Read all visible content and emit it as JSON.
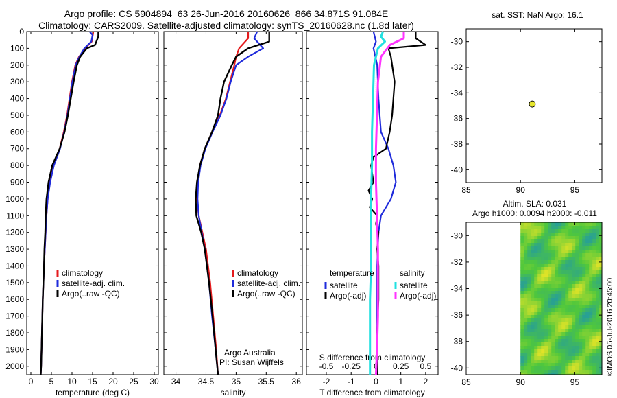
{
  "header": {
    "line1": "Argo profile: CS 5904894_63 26-Jun-2016 20160626_866 34.871S 91.084E",
    "line2": "Climatology: CARS2009. Satellite-adjusted climatology: synTS_20160628.nc (1.8d later)"
  },
  "colors": {
    "climatology": "#e41a1c",
    "satellite": "#1f2bdb",
    "argo": "#000000",
    "sal_satellite": "#22e0e0",
    "sal_argo": "#ff33ff",
    "float": "#e6e62e"
  },
  "chart_data": [
    {
      "id": "temperature",
      "type": "line",
      "xlabel": "temperature (deg C)",
      "ylabel": "",
      "xlim": [
        -1,
        31
      ],
      "ylim": [
        2050,
        0
      ],
      "xticks": [
        0,
        5,
        10,
        15,
        20,
        25,
        30
      ],
      "yticks": [
        0,
        100,
        200,
        300,
        400,
        500,
        600,
        700,
        800,
        900,
        1000,
        1100,
        1200,
        1300,
        1400,
        1500,
        1600,
        1700,
        1800,
        1900,
        2000
      ],
      "legend": [
        "climatology",
        "satellite-adj. clim.",
        "Argo(..raw -QC)"
      ],
      "series": [
        {
          "name": "climatology",
          "depth": [
            0,
            60,
            100,
            150,
            200,
            300,
            400,
            500,
            600,
            700,
            800,
            900,
            1000,
            1100,
            1200,
            1300,
            1400,
            1600,
            1800,
            2000,
            2050
          ],
          "values": [
            15.2,
            14.8,
            13.2,
            11.7,
            10.8,
            10.0,
            9.4,
            8.8,
            8.0,
            7.0,
            5.5,
            4.6,
            4.1,
            3.8,
            3.6,
            3.4,
            3.2,
            2.9,
            2.7,
            2.5,
            2.4
          ]
        },
        {
          "name": "satellite-adj. clim.",
          "depth": [
            0,
            20,
            60,
            100,
            150,
            200,
            300,
            400,
            500,
            600,
            700,
            800,
            900,
            1000,
            1100,
            1200,
            1300,
            1400,
            1600,
            1800,
            2000,
            2050
          ],
          "values": [
            14.3,
            15.0,
            14.7,
            13.0,
            11.8,
            10.9,
            10.1,
            9.5,
            8.9,
            8.1,
            7.1,
            5.6,
            4.7,
            4.1,
            3.8,
            3.6,
            3.4,
            3.2,
            2.9,
            2.7,
            2.5,
            2.4
          ]
        },
        {
          "name": "Argo(..raw -QC)",
          "depth": [
            0,
            30,
            80,
            100,
            150,
            200,
            300,
            400,
            500,
            600,
            700,
            800,
            900,
            1000,
            1100,
            1200,
            1300,
            1400,
            1600,
            1800,
            2000,
            2050
          ],
          "values": [
            16.4,
            16.4,
            15.6,
            13.6,
            12.0,
            11.2,
            10.4,
            9.7,
            9.0,
            8.2,
            7.0,
            5.2,
            4.3,
            3.8,
            3.6,
            3.5,
            3.3,
            3.2,
            2.9,
            2.7,
            2.5,
            2.4
          ]
        }
      ]
    },
    {
      "id": "salinity",
      "type": "line",
      "xlabel": "salinity",
      "ylabel": "",
      "xlim": [
        33.8,
        36.1
      ],
      "ylim": [
        2050,
        0
      ],
      "xticks": [
        34,
        34.5,
        35,
        35.5,
        36
      ],
      "legend": [
        "climatology",
        "satellite-adj. clim.",
        "Argo(..raw -QC)"
      ],
      "annotations": [
        "Argo Australia",
        "PI: Susan Wijffels"
      ],
      "series": [
        {
          "name": "climatology",
          "depth": [
            0,
            40,
            100,
            150,
            200,
            300,
            400,
            500,
            600,
            700,
            800,
            900,
            1000,
            1100,
            1200,
            1300,
            1500,
            1700,
            1900,
            2050
          ],
          "values": [
            35.2,
            35.2,
            35.05,
            35.0,
            34.97,
            34.9,
            34.83,
            34.73,
            34.6,
            34.48,
            34.4,
            34.36,
            34.35,
            34.38,
            34.44,
            34.5,
            34.57,
            34.62,
            34.67,
            34.7
          ]
        },
        {
          "name": "satellite-adj. clim.",
          "depth": [
            0,
            40,
            100,
            150,
            200,
            300,
            400,
            500,
            600,
            700,
            800,
            900,
            1000,
            1100,
            1200,
            1300,
            1500,
            1700,
            1900,
            2050
          ],
          "values": [
            35.35,
            35.3,
            35.45,
            35.2,
            35.0,
            34.91,
            34.84,
            34.74,
            34.61,
            34.49,
            34.41,
            34.37,
            34.36,
            34.38,
            34.43,
            34.48,
            34.55,
            34.6,
            34.66,
            34.7
          ]
        },
        {
          "name": "Argo(..raw -QC)",
          "depth": [
            0,
            60,
            100,
            150,
            200,
            300,
            400,
            500,
            600,
            700,
            800,
            900,
            1000,
            1100,
            1200,
            1300,
            1500,
            1700,
            1900,
            2050
          ],
          "values": [
            35.55,
            35.55,
            35.2,
            35.0,
            34.93,
            34.8,
            34.74,
            34.7,
            34.6,
            34.48,
            34.4,
            34.35,
            34.33,
            34.34,
            34.42,
            34.48,
            34.55,
            34.61,
            34.66,
            34.7
          ]
        }
      ]
    },
    {
      "id": "difference",
      "type": "line",
      "xlabel": "T difference from climatology",
      "secondary_xlabel": "S difference from climatology",
      "xlim": [
        -2.8,
        2.5
      ],
      "ylim": [
        2050,
        0
      ],
      "xticks": [
        -2,
        -1,
        0,
        1,
        2
      ],
      "secondary_xticks": [
        "-0.5",
        "-0.25",
        "0",
        "0.25",
        "0.5"
      ],
      "legend_groups": [
        "temperature",
        "salinity"
      ],
      "legend": [
        "satellite",
        "Argo(-adj)",
        "satellite",
        "Argo(-adj)"
      ],
      "series": [
        {
          "name": "temperature satellite",
          "depth": [
            0,
            30,
            60,
            100,
            200,
            400,
            600,
            700,
            800,
            900,
            1000,
            1100,
            1200,
            1400,
            1600,
            1800,
            2050
          ],
          "values": [
            -0.1,
            -0.05,
            0.0,
            -0.1,
            0.05,
            0.1,
            0.2,
            0.5,
            0.7,
            0.8,
            0.6,
            0.2,
            0.1,
            0.05,
            0.05,
            0.05,
            0.05
          ]
        },
        {
          "name": "temperature Argo(-adj)",
          "depth": [
            0,
            40,
            80,
            100,
            150,
            200,
            300,
            400,
            500,
            600,
            700,
            750,
            800,
            850,
            900,
            950,
            1000,
            1050,
            1100,
            1150,
            1200,
            1300,
            1400,
            1600,
            1800,
            2050
          ],
          "values": [
            1.6,
            1.6,
            2.0,
            0.5,
            0.6,
            0.65,
            0.75,
            0.7,
            0.65,
            0.55,
            0.4,
            -0.1,
            -0.2,
            -0.15,
            -0.1,
            -0.3,
            -0.15,
            -0.25,
            0.05,
            0.0,
            0.1,
            0.05,
            0.1,
            0.1,
            0.05,
            0.05
          ]
        },
        {
          "name": "salinity satellite",
          "depth": [
            0,
            30,
            60,
            100,
            200,
            400,
            600,
            800,
            1000,
            1200,
            1400,
            1600,
            1800,
            2050
          ],
          "values": [
            0.07,
            0.05,
            0.09,
            0.02,
            -0.02,
            -0.03,
            -0.04,
            -0.04,
            -0.05,
            -0.05,
            -0.05,
            -0.06,
            -0.06,
            -0.06
          ]
        },
        {
          "name": "salinity Argo(-adj)",
          "depth": [
            0,
            40,
            80,
            150,
            300,
            500,
            700,
            900,
            1100,
            1300,
            1500,
            1700,
            1900,
            2050
          ],
          "values": [
            0.28,
            0.28,
            0.14,
            0.05,
            0.02,
            0.01,
            0.0,
            0.0,
            0.01,
            0.02,
            0.02,
            0.02,
            0.01,
            0.0
          ]
        }
      ]
    },
    {
      "id": "sst_map",
      "type": "scatter",
      "title": "sat. SST: NaN Argo: 16.1",
      "xlim": [
        85,
        97.5
      ],
      "ylim": [
        -41,
        -29
      ],
      "xticks": [
        85,
        90,
        95
      ],
      "yticks": [
        -30,
        -32,
        -34,
        -36,
        -38,
        -40
      ],
      "points": [
        {
          "lon": 91.084,
          "lat": -34.871
        }
      ]
    },
    {
      "id": "sla_map",
      "type": "heatmap",
      "title_line1": "Altim. SLA: 0.031",
      "title_line2": "Argo h1000: 0.0094 h2000: -0.011",
      "xlim": [
        85,
        97.5
      ],
      "ylim": [
        -40.5,
        -29
      ],
      "xticks": [
        85,
        90,
        95
      ],
      "yticks": [
        -30,
        -32,
        -34,
        -36,
        -38,
        -40
      ],
      "data_lon_start": 90
    }
  ],
  "footer": {
    "credit": "©IMOS 05-Jul-2016 20:45:00"
  }
}
